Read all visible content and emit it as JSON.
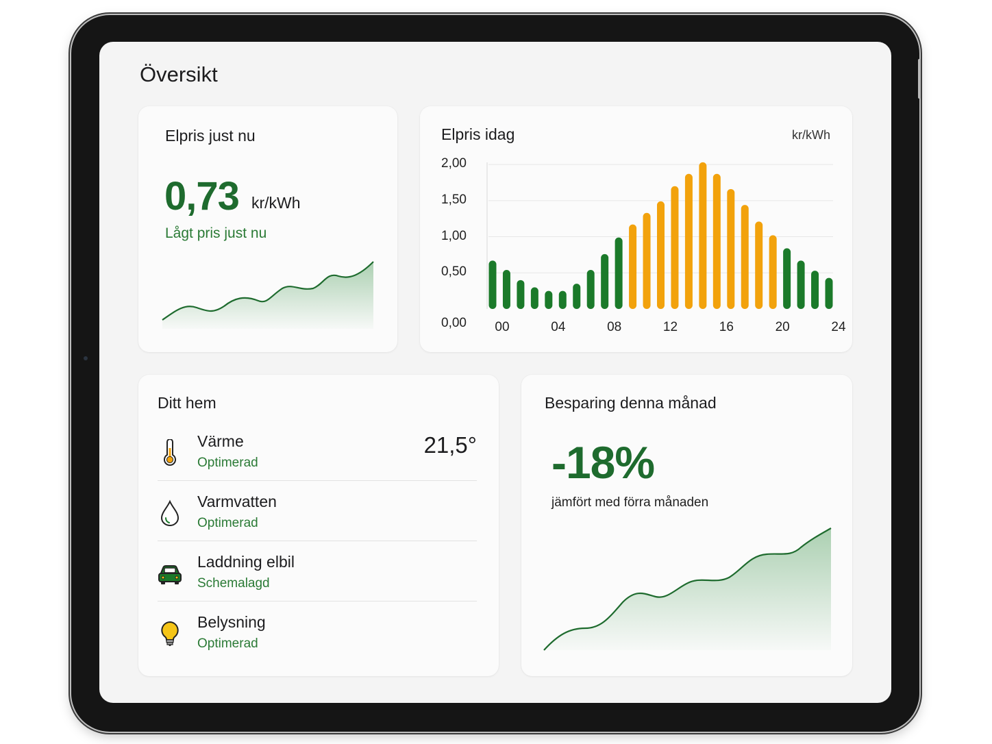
{
  "page": {
    "title": "Översikt"
  },
  "current_price": {
    "title": "Elpris just nu",
    "value": "0,73",
    "unit": "kr/kWh",
    "status": "Lågt pris just nu"
  },
  "price_today": {
    "title": "Elpris idag",
    "unit": "kr/kWh"
  },
  "chart_data": {
    "type": "bar",
    "title": "Elpris idag",
    "ylabel": "kr/kWh",
    "xlabel": "",
    "ylim": [
      0,
      2.2
    ],
    "y_ticks": [
      "0,00",
      "0,50",
      "1,00",
      "1,50",
      "2,00"
    ],
    "x_ticks": [
      "00",
      "04",
      "08",
      "12",
      "16",
      "20",
      "24"
    ],
    "x": [
      0,
      1,
      2,
      3,
      4,
      5,
      6,
      7,
      8,
      9,
      10,
      11,
      12,
      13,
      14,
      15,
      16,
      17,
      18,
      19,
      20,
      21,
      22,
      23,
      24
    ],
    "values": [
      0.67,
      0.54,
      0.4,
      0.3,
      0.25,
      0.25,
      0.35,
      0.54,
      0.76,
      0.99,
      1.17,
      1.33,
      1.49,
      1.7,
      1.87,
      2.03,
      1.87,
      1.66,
      1.44,
      1.21,
      1.02,
      0.84,
      0.67,
      0.53,
      0.43
    ],
    "colors": {
      "low": "#1b7a2a",
      "high": "#f2a20c"
    },
    "high_hours": [
      10,
      11,
      12,
      13,
      14,
      15,
      16,
      17,
      18,
      19,
      20
    ],
    "grid": true
  },
  "home": {
    "title": "Ditt hem",
    "items": [
      {
        "name": "Värme",
        "status": "Optimerad",
        "value": "21,5°",
        "icon": "thermometer-icon"
      },
      {
        "name": "Varmvatten",
        "status": "Optimerad",
        "icon": "water-drop-icon"
      },
      {
        "name": "Laddning elbil",
        "status": "Schemalagd",
        "icon": "electric-car-icon"
      },
      {
        "name": "Belysning",
        "status": "Optimerad",
        "icon": "lightbulb-icon"
      }
    ]
  },
  "savings": {
    "title": "Besparing denna månad",
    "value": "-18%",
    "subtitle": "jämfört med förra månaden"
  },
  "colors": {
    "accent_green": "#1e6b2e",
    "status_green": "#2a7a35",
    "bar_green": "#1b7a2a",
    "bar_orange": "#f2a20c",
    "bulb_yellow": "#f5c518"
  }
}
